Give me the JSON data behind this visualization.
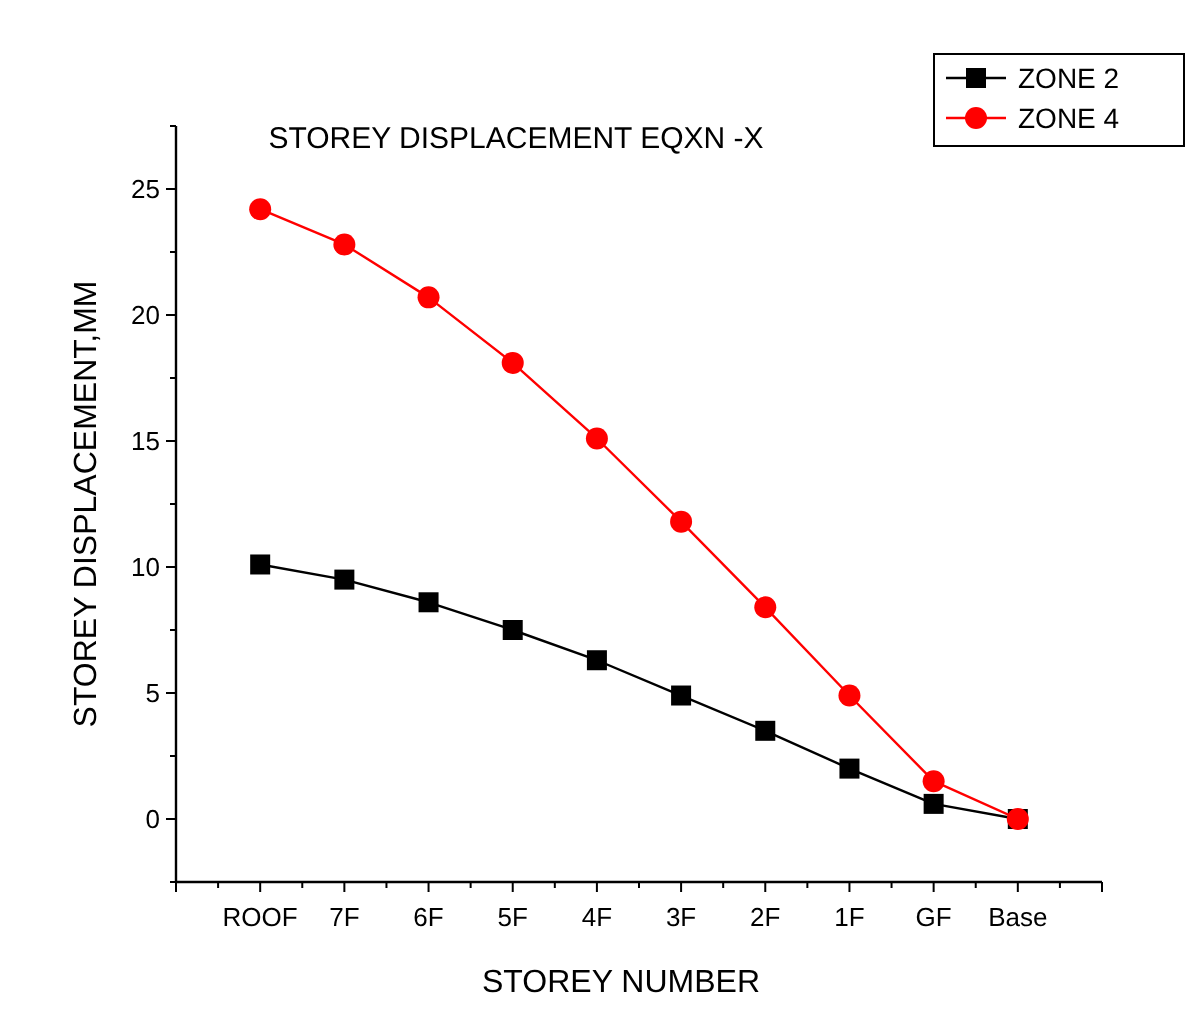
{
  "chart_data": {
    "type": "line",
    "title": "STOREY DISPLACEMENT EQXN -X",
    "xlabel": "STOREY NUMBER",
    "ylabel": "STOREY DISPLACEMENT,MM",
    "categories": [
      "ROOF",
      "7F",
      "6F",
      "5F",
      "4F",
      "3F",
      "2F",
      "1F",
      "GF",
      "Base"
    ],
    "series": [
      {
        "name": "ZONE 2",
        "color": "#000000",
        "marker": "square",
        "values": [
          10.1,
          9.5,
          8.6,
          7.5,
          6.3,
          4.9,
          3.5,
          2.0,
          0.6,
          0
        ]
      },
      {
        "name": "ZONE 4",
        "color": "#ff0000",
        "marker": "circle",
        "values": [
          24.2,
          22.8,
          20.7,
          18.1,
          15.1,
          11.8,
          8.4,
          4.9,
          1.5,
          0
        ]
      }
    ],
    "ylim": [
      -2.5,
      27.5
    ],
    "yticks": [
      {
        "value": -2.5,
        "label": null
      },
      0,
      {
        "value": 2.5,
        "label": null
      },
      5,
      {
        "value": 7.5,
        "label": null
      },
      10,
      {
        "value": 12.5,
        "label": null
      },
      15,
      {
        "value": 17.5,
        "label": null
      },
      20,
      {
        "value": 22.5,
        "label": null
      },
      25,
      {
        "value": 27.5,
        "label": null
      }
    ],
    "legend": "top right",
    "grid": false,
    "line_style": "solid"
  }
}
